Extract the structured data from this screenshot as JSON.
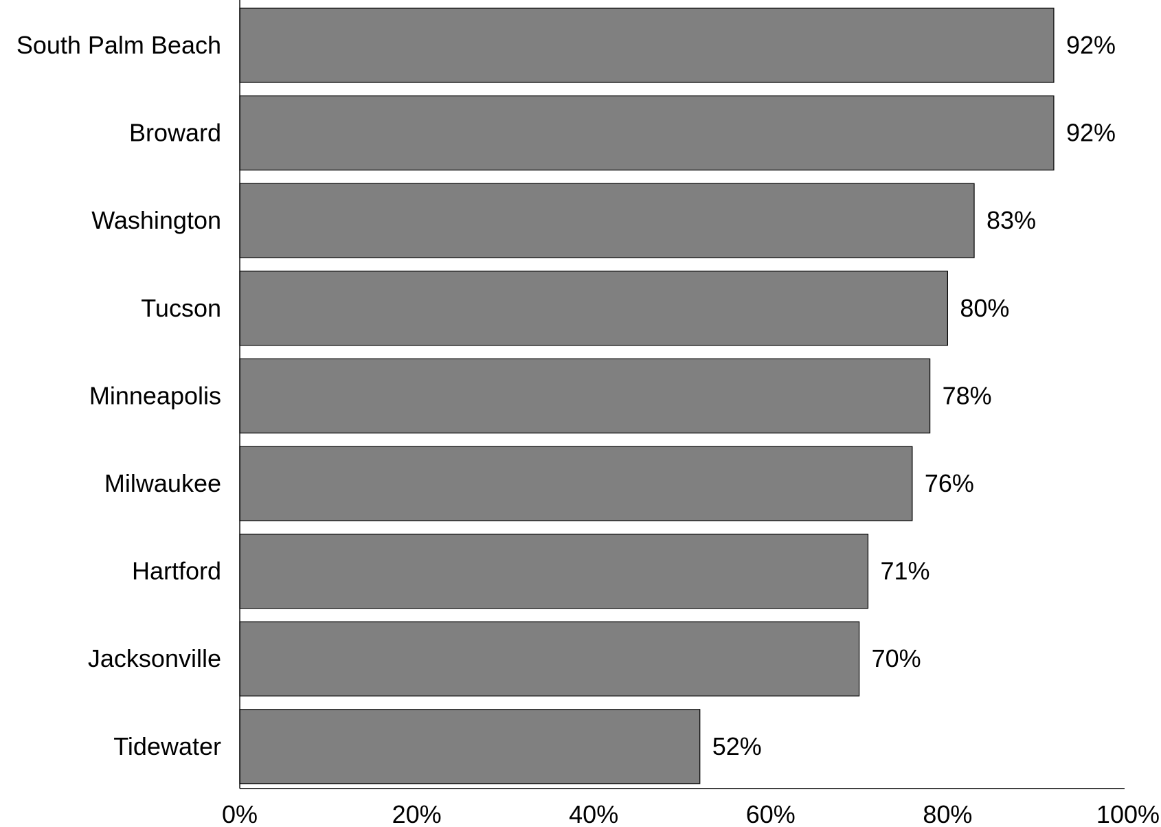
{
  "chart_data": {
    "type": "bar",
    "orientation": "horizontal",
    "categories": [
      "South Palm Beach",
      "Broward",
      "Washington",
      "Tucson",
      "Minneapolis",
      "Milwaukee",
      "Hartford",
      "Jacksonville",
      "Tidewater"
    ],
    "values": [
      92,
      92,
      83,
      80,
      78,
      76,
      71,
      70,
      52
    ],
    "value_labels": [
      "92%",
      "92%",
      "83%",
      "80%",
      "78%",
      "76%",
      "71%",
      "70%",
      "52%"
    ],
    "xlim": [
      0,
      100
    ],
    "x_ticks": [
      0,
      20,
      40,
      60,
      80,
      100
    ],
    "x_tick_labels": [
      "0%",
      "20%",
      "40%",
      "60%",
      "80%",
      "100%"
    ],
    "title": "",
    "xlabel": "",
    "ylabel": "",
    "grid": false,
    "legend": "none",
    "bar_color": "#808080"
  }
}
